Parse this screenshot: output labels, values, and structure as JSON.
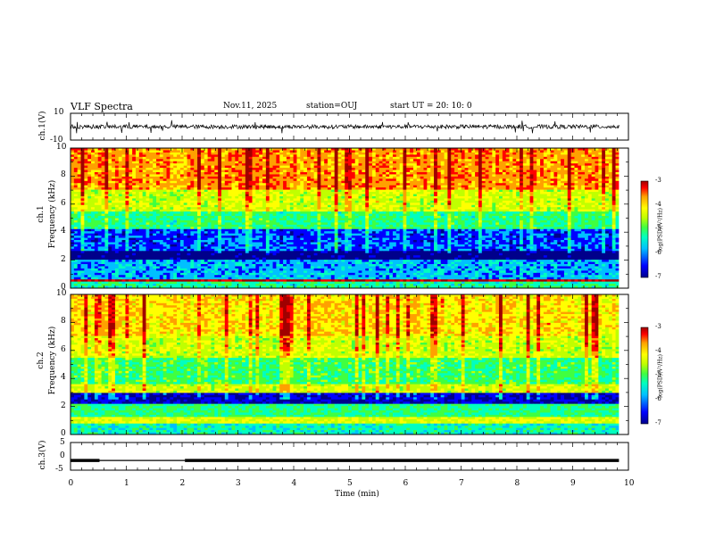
{
  "header": {
    "title": "VLF Spectra",
    "date": "Nov.11, 2025",
    "station": "station=OUJ",
    "start_ut": "start UT =   20: 10: 0"
  },
  "colors": {
    "spectrogram_colormap": [
      "#00008b",
      "#0000ff",
      "#00c0ff",
      "#00ffc0",
      "#40ff40",
      "#c0ff00",
      "#ffff00",
      "#ffa000",
      "#ff0000",
      "#a00000"
    ],
    "waveform": "#000000",
    "frame": "#000000"
  },
  "chart_data": [
    {
      "type": "line",
      "id": "ch1-waveform",
      "ylabel": "ch.1(V)",
      "ylim": [
        -10,
        10
      ],
      "yticks": [
        "10",
        "-10"
      ],
      "xlim": [
        0,
        10
      ],
      "baseline": 0,
      "description_values": {
        "typical_amplitude": 1.5,
        "spike_amplitude": 5
      }
    },
    {
      "type": "heatmap",
      "id": "ch1-spectrogram",
      "ylabel": "ch.1",
      "ylabel2": "Frequency  (kHz)",
      "ylim": [
        0,
        10
      ],
      "yticks": [
        "0",
        "2",
        "4",
        "6",
        "8",
        "10"
      ],
      "xlim": [
        0,
        9.83
      ],
      "colorbar": {
        "range": [
          -7,
          -3
        ],
        "ticks": [
          "-3",
          "-4",
          "-5",
          "-6",
          "-7"
        ],
        "label": "log(PSD)(V²/Hz)"
      },
      "bands": [
        {
          "f_low": 0,
          "f_high": 0.4,
          "level": -5.5
        },
        {
          "f_low": 0.4,
          "f_high": 0.55,
          "level": -3.3
        },
        {
          "f_low": 0.55,
          "f_high": 2.0,
          "level": -6.0
        },
        {
          "f_low": 2.0,
          "f_high": 2.6,
          "level": -6.9
        },
        {
          "f_low": 2.6,
          "f_high": 4.2,
          "level": -6.3
        },
        {
          "f_low": 4.2,
          "f_high": 5.5,
          "level": -5.4
        },
        {
          "f_low": 5.5,
          "f_high": 7.0,
          "level": -4.7
        },
        {
          "f_low": 7.0,
          "f_high": 10.0,
          "level": -4.0
        }
      ]
    },
    {
      "type": "heatmap",
      "id": "ch2-spectrogram",
      "ylabel": "ch.2",
      "ylabel2": "Frequency  (kHz)",
      "ylim": [
        0,
        10
      ],
      "yticks": [
        "0",
        "2",
        "4",
        "6",
        "8",
        "10"
      ],
      "xlim": [
        0,
        9.83
      ],
      "colorbar": {
        "range": [
          -7,
          -3
        ],
        "ticks": [
          "-3",
          "-4",
          "-5",
          "-6",
          "-7"
        ],
        "label": "log(PSD)(V²/Hz)"
      },
      "bands": [
        {
          "f_low": 0,
          "f_high": 0.8,
          "level": -5.6
        },
        {
          "f_low": 0.8,
          "f_high": 1.2,
          "level": -4.6
        },
        {
          "f_low": 1.2,
          "f_high": 2.2,
          "level": -5.4
        },
        {
          "f_low": 2.2,
          "f_high": 3.0,
          "level": -6.6
        },
        {
          "f_low": 3.0,
          "f_high": 3.6,
          "level": -4.7
        },
        {
          "f_low": 3.6,
          "f_high": 5.5,
          "level": -5.3
        },
        {
          "f_low": 5.5,
          "f_high": 7.0,
          "level": -4.7
        },
        {
          "f_low": 7.0,
          "f_high": 10.0,
          "level": -4.3
        }
      ]
    },
    {
      "type": "line",
      "id": "ch3-signal",
      "ylabel": "ch.3(V)",
      "ylim": [
        -5,
        5
      ],
      "yticks": [
        "5",
        "0",
        "-5"
      ],
      "xlim": [
        0,
        10
      ],
      "xlabel": "Time  (min)",
      "xticks": [
        "0",
        "1",
        "2",
        "3",
        "4",
        "5",
        "6",
        "7",
        "8",
        "9",
        "10"
      ],
      "segments": [
        {
          "x_start": 0.0,
          "x_end": 0.52,
          "y": -1.5
        },
        {
          "x_start": 0.52,
          "x_end": 2.05,
          "y": -1.5,
          "thin": true
        },
        {
          "x_start": 2.05,
          "x_end": 9.83,
          "y": -1.5
        }
      ]
    }
  ]
}
